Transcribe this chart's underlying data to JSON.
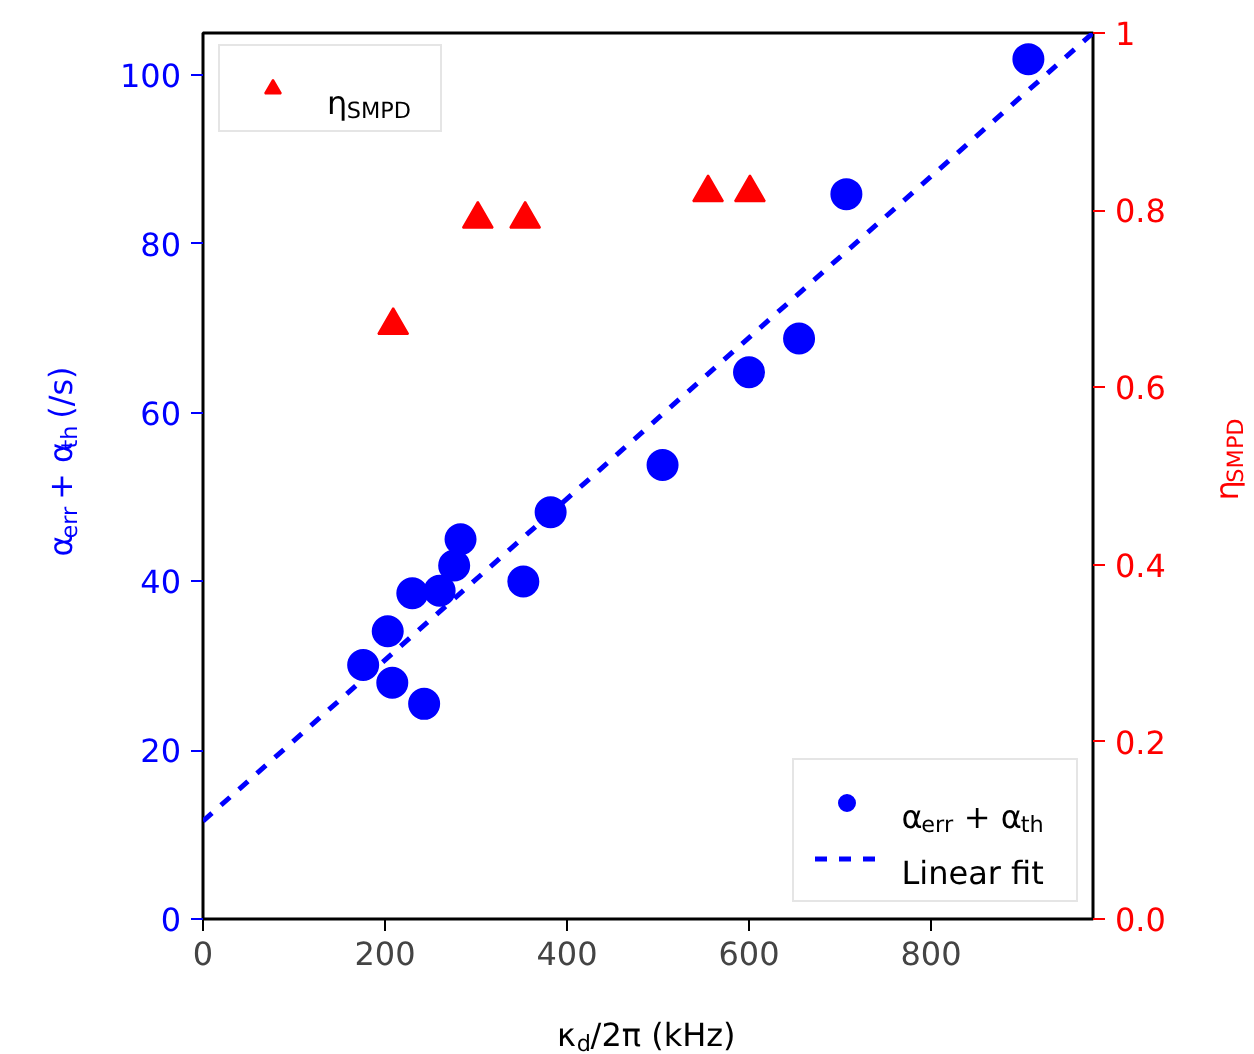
{
  "chart_data": {
    "type": "scatter",
    "xlabel": "κ$_{d}$/2π (kHz)",
    "ylabel": "α$_{err}$ + α$_{th}$ (/s)",
    "y2label": "η$_{SMPD}$",
    "xlim": [
      0,
      978
    ],
    "xticks": [
      0,
      200,
      400,
      600,
      800
    ],
    "ylim": [
      0,
      105
    ],
    "yticks": [
      0,
      20,
      40,
      60,
      80,
      100
    ],
    "y2lim": [
      0,
      1.0
    ],
    "y2ticks": [
      {
        "value": 0,
        "label": "0.0"
      },
      0.2,
      0.4,
      0.6,
      0.8,
      1.0
    ],
    "grid": false,
    "legend": "bottom right",
    "series": [
      {
        "name": "α$_{err}$ + α$_{th}$",
        "marker": "circle",
        "color": "#0000ff",
        "x": [
          176,
          203,
          208,
          243,
          230,
          260,
          276,
          283,
          352,
          382,
          505,
          600,
          655,
          707,
          907
        ],
        "values": [
          30.1,
          34.1,
          28.0,
          25.5,
          38.6,
          38.9,
          41.9,
          45.0,
          40.0,
          48.2,
          53.8,
          64.8,
          68.8,
          85.9,
          101.9
        ]
      },
      {
        "name": "Linear fit",
        "type": "line",
        "line_style": "dashed",
        "color": "#0000ff",
        "x": [
          0,
          978
        ],
        "values": [
          11.6,
          105
        ]
      },
      {
        "name": "η$_{SMPD}$",
        "marker": "triangle",
        "axis": "y2",
        "color": "#ff0000",
        "x": [
          209,
          302,
          354,
          555,
          601
        ],
        "values": [
          0.67,
          0.79,
          0.79,
          0.82,
          0.82
        ]
      }
    ]
  }
}
